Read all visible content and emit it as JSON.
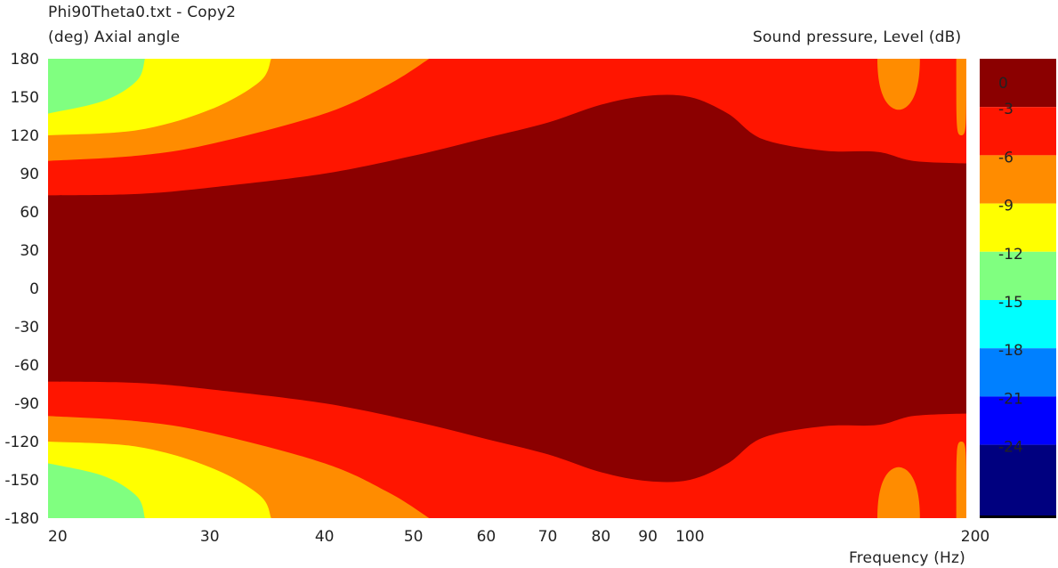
{
  "chart_data": {
    "type": "heatmap",
    "title": "Phi90Theta0.txt - Copy2",
    "ylabel": "(deg)  Axial angle",
    "xlabel": "Frequency  (Hz)",
    "zlabel": "Sound pressure, Level  (dB)",
    "x_scale": "log",
    "xlim": [
      20,
      200
    ],
    "ylim": [
      -180,
      180
    ],
    "x_ticks": [
      20,
      30,
      40,
      50,
      60,
      70,
      80,
      90,
      100,
      200
    ],
    "y_ticks": [
      180,
      150,
      120,
      90,
      60,
      30,
      0,
      -30,
      -60,
      -90,
      -120,
      -150,
      -180
    ],
    "colorbar": {
      "levels": [
        0,
        -3,
        -6,
        -9,
        -12,
        -15,
        -18,
        -21,
        -24
      ],
      "bands": [
        {
          "range": [
            -3,
            0
          ],
          "color": "#8b0000"
        },
        {
          "range": [
            -6,
            -3
          ],
          "color": "#ff1500"
        },
        {
          "range": [
            -9,
            -6
          ],
          "color": "#ff8c00"
        },
        {
          "range": [
            -12,
            -9
          ],
          "color": "#ffff00"
        },
        {
          "range": [
            -15,
            -12
          ],
          "color": "#80ff80"
        },
        {
          "range": [
            -18,
            -15
          ],
          "color": "#00ffff"
        },
        {
          "range": [
            -21,
            -18
          ],
          "color": "#0080ff"
        },
        {
          "range": [
            -24,
            -21
          ],
          "color": "#0000ff"
        },
        {
          "range": [
            -27,
            -24
          ],
          "color": "#00007f"
        }
      ]
    },
    "contours": [
      {
        "level": -3,
        "color": "#8b0000",
        "points": [
          [
            20,
            73
          ],
          [
            25,
            74
          ],
          [
            30,
            79
          ],
          [
            40,
            90
          ],
          [
            50,
            104
          ],
          [
            60,
            118
          ],
          [
            70,
            130
          ],
          [
            80,
            144
          ],
          [
            90,
            151
          ],
          [
            100,
            150
          ],
          [
            110,
            137
          ],
          [
            120,
            117
          ],
          [
            140,
            108
          ],
          [
            160,
            107
          ],
          [
            175,
            100
          ],
          [
            200,
            98
          ]
        ]
      },
      {
        "level": -6,
        "color": "#ff1500",
        "points": [
          [
            20,
            100
          ],
          [
            25,
            104
          ],
          [
            30,
            113
          ],
          [
            40,
            137
          ],
          [
            47,
            160
          ],
          [
            52,
            180
          ]
        ]
      },
      {
        "level": -9,
        "color": "#ff8c00",
        "points": [
          [
            20,
            120
          ],
          [
            25,
            124
          ],
          [
            30,
            140
          ],
          [
            34,
            162
          ],
          [
            35,
            180
          ]
        ]
      },
      {
        "level": -12,
        "color": "#ffff00",
        "points": [
          [
            20,
            137
          ],
          [
            23,
            147
          ],
          [
            25,
            163
          ],
          [
            25.5,
            180
          ]
        ]
      }
    ],
    "edge_notches": [
      {
        "level": -6,
        "color": "#ff8c00",
        "x_range": [
          160,
          178
        ],
        "depth_deg": 40,
        "note": "small -6 dB lobes at top/bottom edge near 170 Hz"
      },
      {
        "level": -6,
        "color": "#ff8c00",
        "x_range": [
          195,
          200
        ],
        "depth_deg": 60,
        "note": "edge lobe at 200 Hz"
      }
    ]
  }
}
